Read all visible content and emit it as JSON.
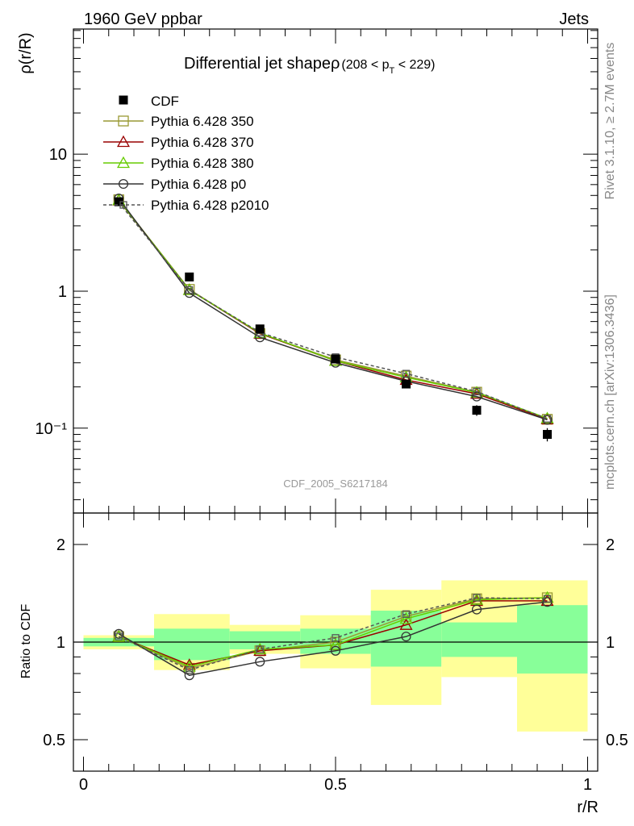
{
  "header": {
    "left": "1960 GeV ppbar",
    "right": "Jets"
  },
  "side_labels": {
    "rivet": "Rivet 3.1.10, ≥ 2.7M events",
    "mcplots": "mcplots.cern.ch [arXiv:1306.3436]"
  },
  "chart_data": {
    "type": "line",
    "title_main": "Differential jet shape",
    "title_rho": "ρ",
    "title_range_open": "(208 < p",
    "title_range_sub": "T",
    "title_range_close": " < 229)",
    "watermark": "CDF_2005_S6217184",
    "xlabel": "r/R",
    "ylabel_top": "ρ(r/R)",
    "ylabel_bottom": "Ratio to CDF",
    "x_ticks": [
      "0",
      "0.5",
      "1"
    ],
    "y_ticks_top": [
      "10",
      "1",
      "10⁻¹"
    ],
    "y_ticks_bottom": [
      "2",
      "1",
      "0.5"
    ],
    "y_scale": "log",
    "xlim": [
      -0.02,
      1.02
    ],
    "ylim_top": [
      0.024,
      82
    ],
    "ylim_bottom": [
      0.4,
      2.5
    ],
    "legend_placement": "top-left",
    "x": [
      0.07,
      0.21,
      0.35,
      0.5,
      0.64,
      0.78,
      0.92
    ],
    "bins": [
      [
        0.0,
        0.14
      ],
      [
        0.14,
        0.29
      ],
      [
        0.29,
        0.43
      ],
      [
        0.43,
        0.57
      ],
      [
        0.57,
        0.71
      ],
      [
        0.71,
        0.86
      ],
      [
        0.86,
        1.0
      ]
    ],
    "data": {
      "name": "CDF",
      "values": [
        4.5,
        1.27,
        0.53,
        0.32,
        0.21,
        0.135,
        0.09
      ],
      "errors": [
        0.25,
        0.06,
        0.03,
        0.02,
        0.015,
        0.012,
        0.01
      ],
      "band_inner": [
        [
          0.97,
          1.03
        ],
        [
          0.88,
          1.1
        ],
        [
          0.95,
          1.08
        ],
        [
          0.92,
          1.1
        ],
        [
          0.84,
          1.25
        ],
        [
          0.9,
          1.15
        ],
        [
          0.8,
          1.3
        ]
      ],
      "band_outer": [
        [
          0.95,
          1.05
        ],
        [
          0.82,
          1.22
        ],
        [
          0.92,
          1.13
        ],
        [
          0.83,
          1.21
        ],
        [
          0.64,
          1.45
        ],
        [
          0.78,
          1.55
        ],
        [
          0.53,
          1.55
        ]
      ]
    },
    "series": [
      {
        "name": "Pythia 6.428 350",
        "color": "#999933",
        "marker": "square",
        "dash": false,
        "values": [
          4.65,
          1.03,
          0.49,
          0.315,
          0.24,
          0.183,
          0.116
        ],
        "ratio": [
          1.04,
          0.83,
          0.94,
          1.0,
          1.2,
          1.36,
          1.37
        ]
      },
      {
        "name": "Pythia 6.428 370",
        "color": "#990000",
        "marker": "triangle",
        "dash": false,
        "values": [
          4.6,
          1.02,
          0.49,
          0.31,
          0.225,
          0.178,
          0.116
        ],
        "ratio": [
          1.04,
          0.85,
          0.94,
          0.98,
          1.13,
          1.34,
          1.34
        ]
      },
      {
        "name": "Pythia 6.428 380",
        "color": "#66cc00",
        "marker": "triangle",
        "dash": false,
        "values": [
          4.62,
          1.02,
          0.495,
          0.31,
          0.235,
          0.182,
          0.118
        ],
        "ratio": [
          1.04,
          0.84,
          0.95,
          0.98,
          1.18,
          1.35,
          1.37
        ]
      },
      {
        "name": "Pythia 6.428 p0",
        "color": "#333333",
        "marker": "circle",
        "dash": false,
        "values": [
          4.75,
          0.97,
          0.46,
          0.3,
          0.22,
          0.17,
          0.115
        ],
        "ratio": [
          1.06,
          0.79,
          0.87,
          0.94,
          1.04,
          1.26,
          1.33
        ]
      },
      {
        "name": "Pythia 6.428 p2010",
        "color": "#555555",
        "marker": "square",
        "dash": true,
        "values": [
          4.45,
          1.02,
          0.5,
          0.33,
          0.25,
          0.185,
          0.117
        ],
        "ratio": [
          1.04,
          0.82,
          0.95,
          1.03,
          1.22,
          1.37,
          1.36
        ]
      }
    ],
    "colors": {
      "band_inner": "#88ff99",
      "band_outer": "#ffff99",
      "data": "#000000"
    }
  }
}
